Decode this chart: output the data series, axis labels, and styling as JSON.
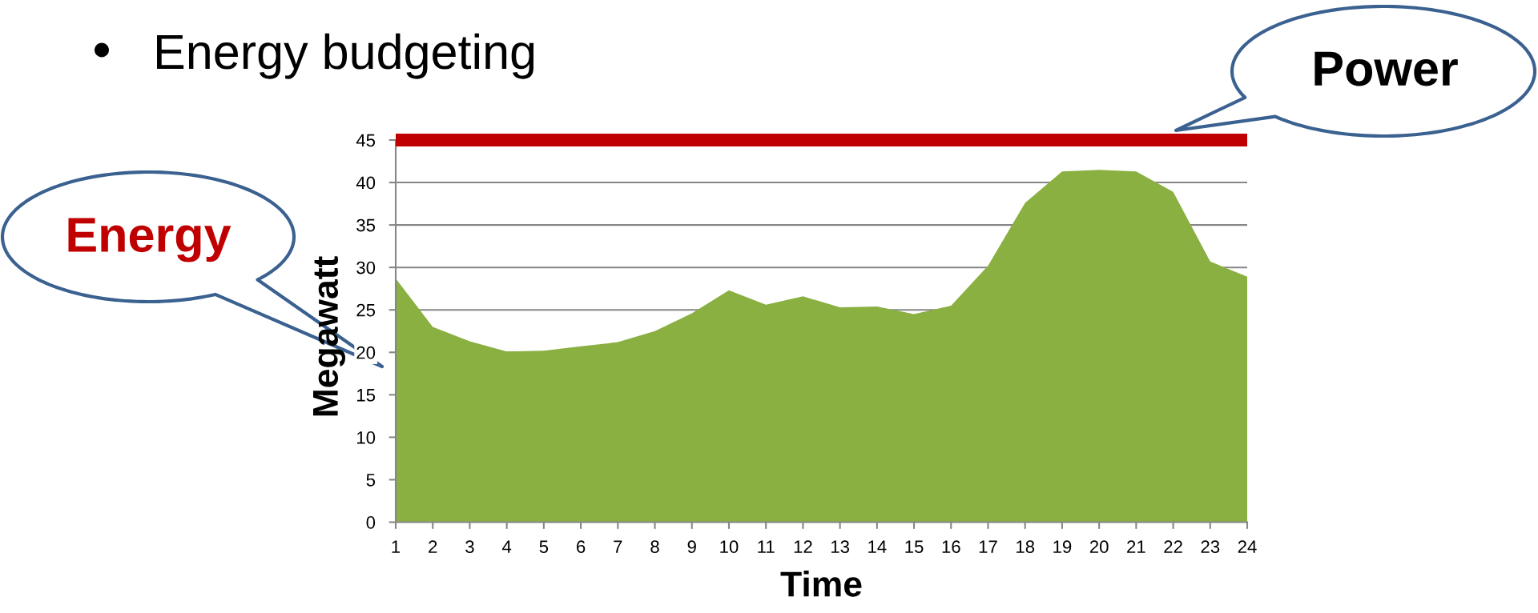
{
  "chart_data": {
    "type": "area",
    "title": "Energy budgeting",
    "xlabel": "Time",
    "ylabel": "Megawatt",
    "categories": [
      "1",
      "2",
      "3",
      "4",
      "5",
      "6",
      "7",
      "8",
      "9",
      "10",
      "11",
      "12",
      "13",
      "14",
      "15",
      "16",
      "17",
      "18",
      "19",
      "20",
      "21",
      "22",
      "23",
      "24"
    ],
    "series": [
      {
        "color": "#8ab041",
        "values": [
          28.7,
          23.0,
          21.3,
          20.1,
          20.2,
          20.7,
          21.2,
          22.5,
          24.6,
          27.3,
          25.6,
          26.6,
          25.3,
          25.4,
          24.5,
          25.5,
          30.2,
          37.6,
          41.3,
          41.5,
          41.3,
          38.9,
          30.7,
          28.9
        ]
      }
    ],
    "ylim": [
      0,
      45
    ],
    "yticks": [
      0,
      5,
      10,
      15,
      20,
      25,
      30,
      35,
      40,
      45
    ],
    "grid": "y",
    "ref_lines": [
      {
        "axis": "y",
        "value": 45,
        "label": "Power",
        "color": "#c00000"
      }
    ],
    "annotations": [
      "Energy"
    ]
  }
}
